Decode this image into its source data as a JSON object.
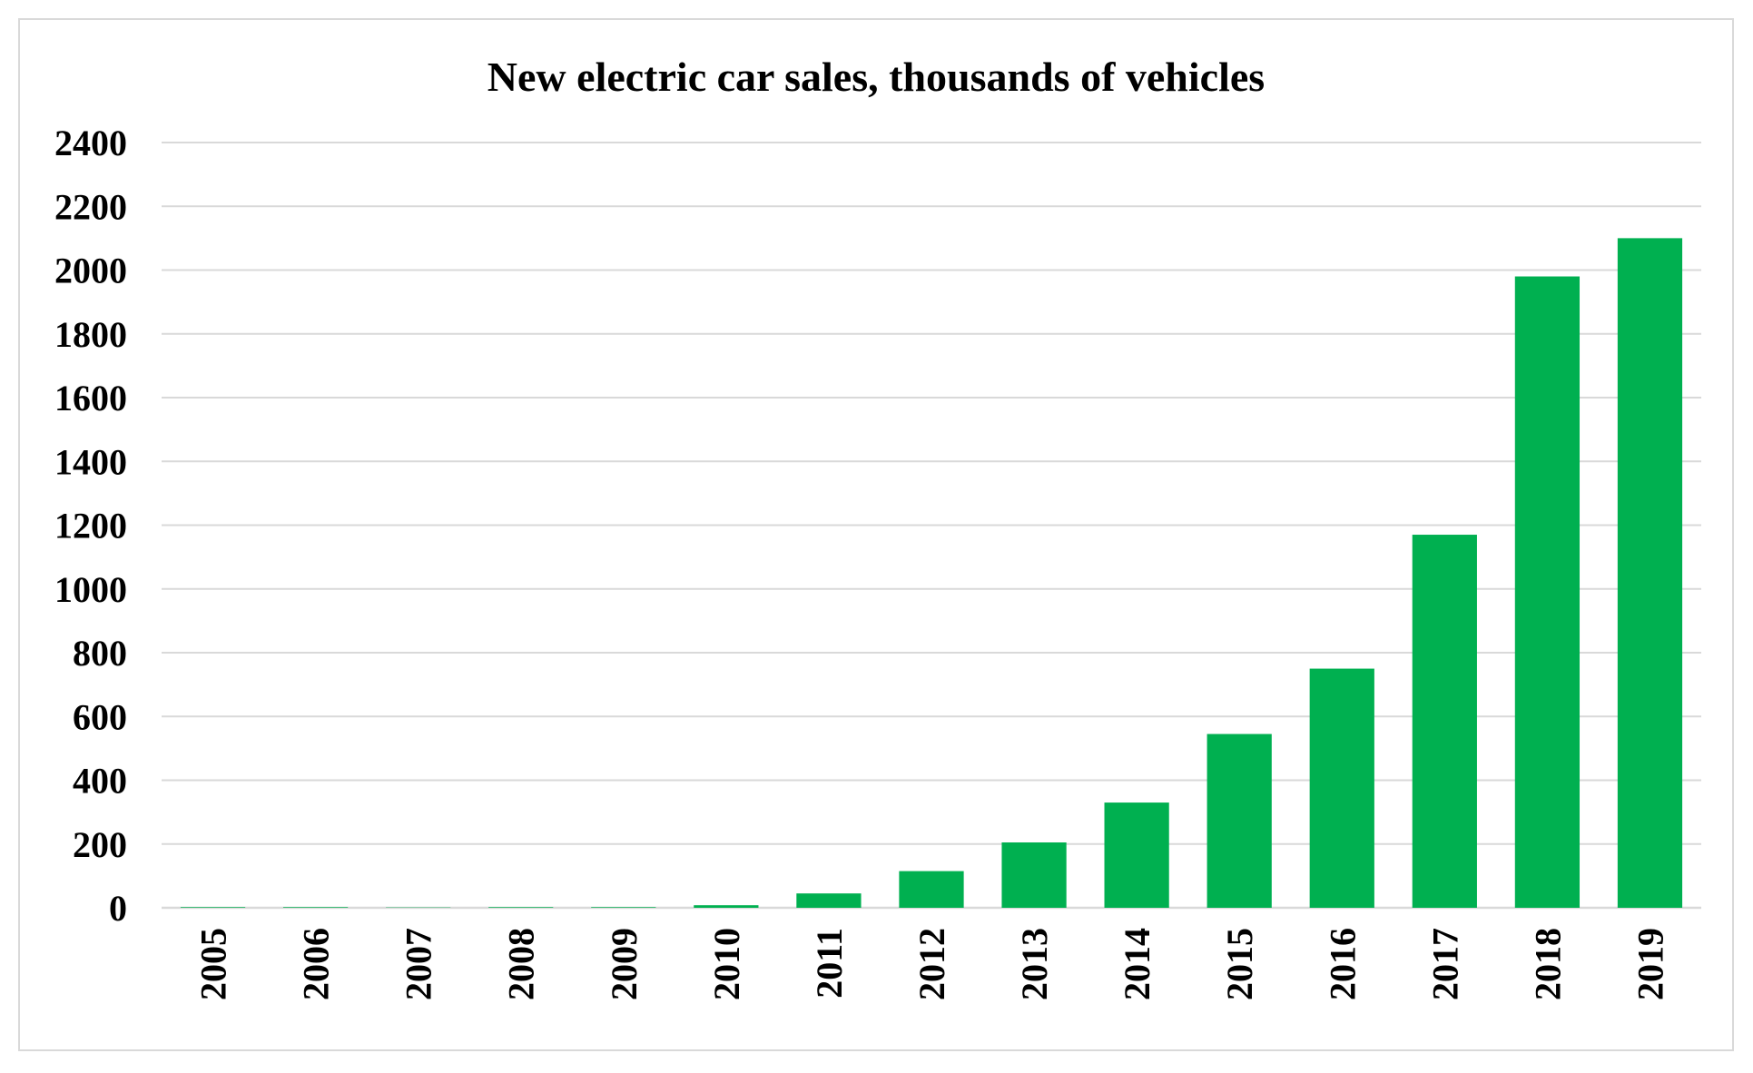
{
  "chart_data": {
    "type": "bar",
    "title": "New electric car sales, thousands of vehicles",
    "xlabel": "",
    "ylabel": "",
    "categories": [
      "2005",
      "2006",
      "2007",
      "2008",
      "2009",
      "2010",
      "2011",
      "2012",
      "2013",
      "2014",
      "2015",
      "2016",
      "2017",
      "2018",
      "2019"
    ],
    "values": [
      2,
      2,
      1,
      2,
      2,
      8,
      45,
      115,
      205,
      330,
      545,
      750,
      1170,
      1980,
      2100
    ],
    "ylim": [
      0,
      2400
    ],
    "yticks": [
      "0",
      "200",
      "400",
      "600",
      "800",
      "1000",
      "1200",
      "1400",
      "1600",
      "1800",
      "2000",
      "2200",
      "2400"
    ],
    "grid": true,
    "legend": "none",
    "bar_color": "#00b050",
    "grid_color": "#d9d9d9"
  }
}
